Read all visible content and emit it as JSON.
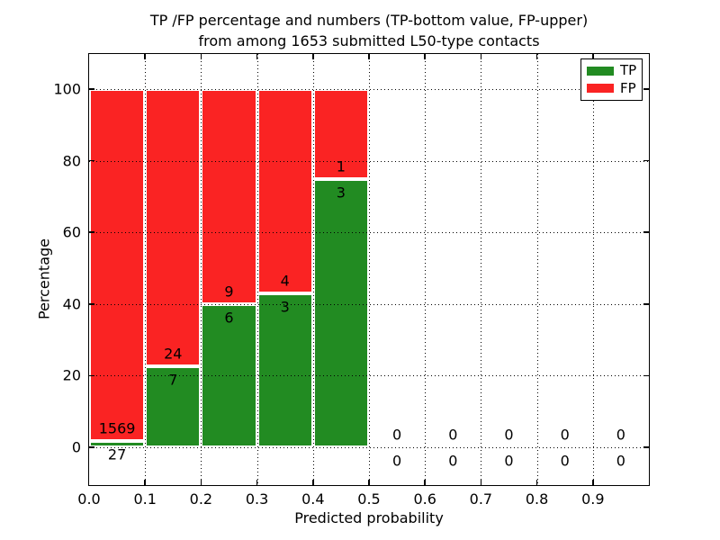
{
  "figure": {
    "title_line1": "TP /FP percentage and numbers (TP-bottom value, FP-upper)",
    "title_line2": "from among 1653 submitted L50-type contacts"
  },
  "chart_data": {
    "type": "bar",
    "subtype": "stacked-percentage-histogram",
    "title": "TP /FP percentage and numbers (TP-bottom value, FP-upper)\nfrom among 1653 submitted L50-type contacts",
    "xlabel": "Predicted probability",
    "ylabel": "Percentage",
    "total_contacts": 1653,
    "xlim": [
      0.0,
      1.0
    ],
    "ylim": [
      -10.5,
      110
    ],
    "grid": "dotted",
    "legend_position": "upper right",
    "bin_width": 0.1,
    "bin_starts": [
      0.0,
      0.1,
      0.2,
      0.3,
      0.4,
      0.5,
      0.6,
      0.7,
      0.8,
      0.9
    ],
    "x_tick_labels": [
      "0.0",
      "0.1",
      "0.2",
      "0.3",
      "0.4",
      "0.5",
      "0.6",
      "0.7",
      "0.8",
      "0.9"
    ],
    "y_tick_values": [
      0,
      20,
      40,
      60,
      80,
      100
    ],
    "y_tick_labels": [
      "0",
      "20",
      "40",
      "60",
      "80",
      "100"
    ],
    "series": [
      {
        "name": "TP",
        "color": "#228b22",
        "counts": [
          27,
          7,
          6,
          3,
          3,
          0,
          0,
          0,
          0,
          0
        ]
      },
      {
        "name": "FP",
        "color": "#fa2323",
        "counts": [
          1569,
          24,
          9,
          4,
          1,
          0,
          0,
          0,
          0,
          0
        ]
      }
    ],
    "tp_percent": [
      1.69,
      22.58,
      40.0,
      42.86,
      75.0,
      0,
      0,
      0,
      0,
      0
    ]
  }
}
